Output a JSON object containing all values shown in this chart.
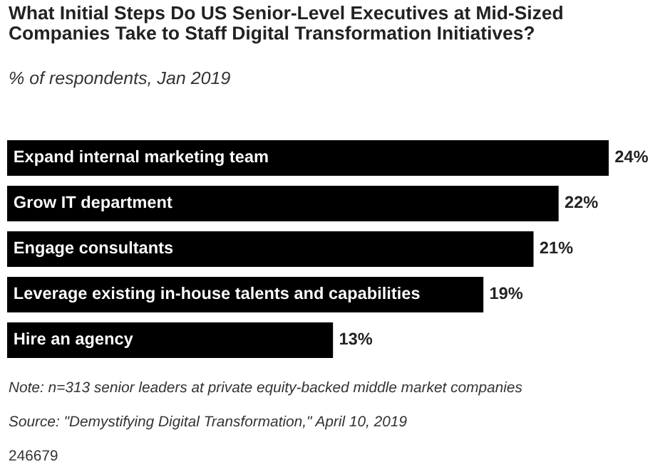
{
  "chart_data": {
    "type": "bar",
    "orientation": "horizontal",
    "title": "What Initial Steps Do US Senior-Level Executives at Mid-Sized Companies Take to Staff Digital Transformation Initiatives?",
    "subtitle": "% of respondents, Jan 2019",
    "categories": [
      "Expand internal marketing team",
      "Grow IT department",
      "Engage consultants",
      "Leverage existing in-house talents and capabilities",
      "Hire an agency"
    ],
    "values": [
      24,
      22,
      21,
      19,
      13
    ],
    "value_labels": [
      "24%",
      "22%",
      "21%",
      "19%",
      "13%"
    ],
    "color": "#000000",
    "annotations": [
      "Note: n=313 senior leaders at private equity-backed middle market companies",
      "Source: \"Demystifying Digital Transformation,\" April 10, 2019",
      "246679"
    ],
    "legend": false
  }
}
